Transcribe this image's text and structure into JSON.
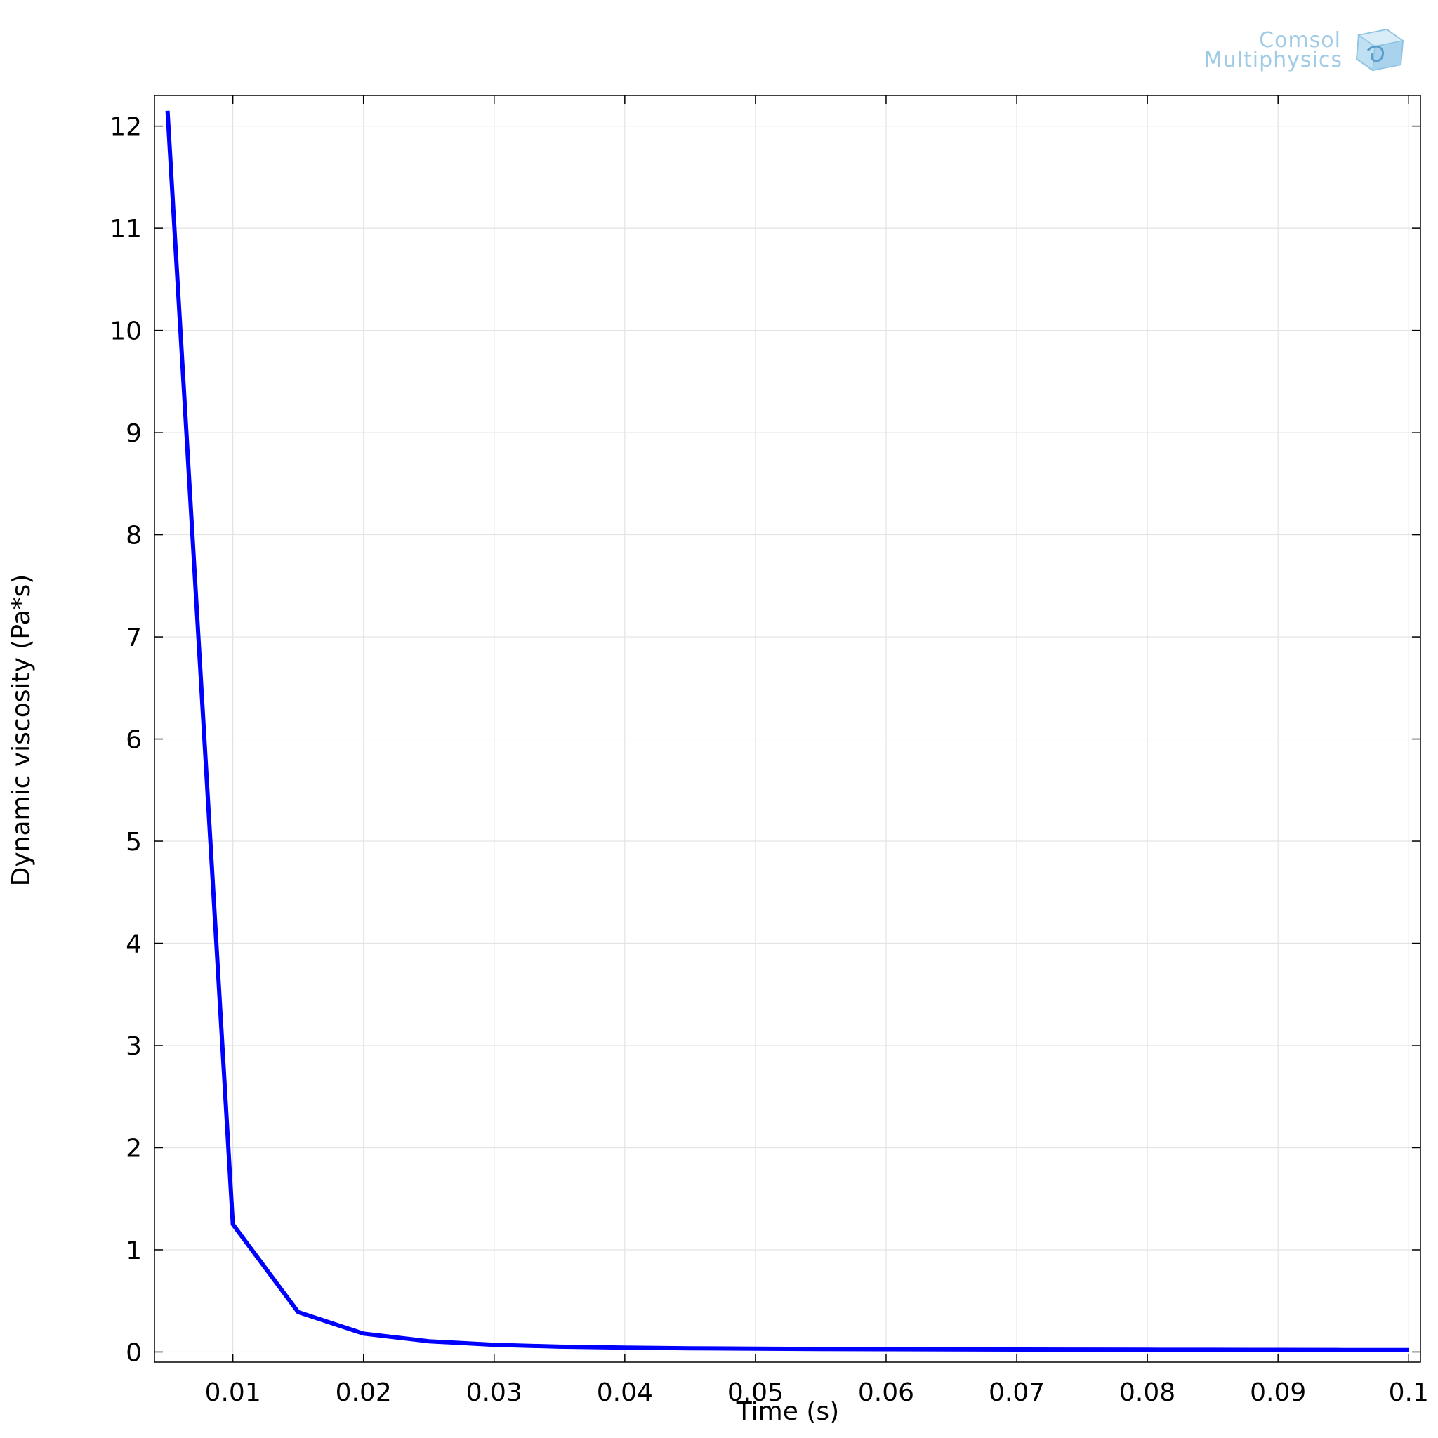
{
  "logo": {
    "line1": "Comsol",
    "line2": "Multiphysics",
    "color": "#9fcbe6"
  },
  "chart_data": {
    "type": "line",
    "title": "",
    "xlabel": "Time (s)",
    "ylabel": "Dynamic viscosity (Pa*s)",
    "xlim": [
      0.004,
      0.1009
    ],
    "ylim": [
      -0.1,
      12.3
    ],
    "xticks": [
      0.01,
      0.02,
      0.03,
      0.04,
      0.05,
      0.06,
      0.07,
      0.08,
      0.09,
      0.1
    ],
    "xtick_labels": [
      "0.01",
      "0.02",
      "0.03",
      "0.04",
      "0.05",
      "0.06",
      "0.07",
      "0.08",
      "0.09",
      "0.1"
    ],
    "yticks": [
      0,
      1,
      2,
      3,
      4,
      5,
      6,
      7,
      8,
      9,
      10,
      11,
      12
    ],
    "ytick_labels": [
      "0",
      "1",
      "2",
      "3",
      "4",
      "5",
      "6",
      "7",
      "8",
      "9",
      "10",
      "11",
      "12"
    ],
    "grid": true,
    "line_color": "#0000ff",
    "series": [
      {
        "x": [
          0.005,
          0.01,
          0.015,
          0.02,
          0.025,
          0.03,
          0.035,
          0.04,
          0.045,
          0.05,
          0.055,
          0.06,
          0.065,
          0.07,
          0.075,
          0.08,
          0.085,
          0.09,
          0.095,
          0.1
        ],
        "y": [
          12.15,
          1.25,
          0.39,
          0.18,
          0.105,
          0.07,
          0.052,
          0.042,
          0.036,
          0.032,
          0.029,
          0.027,
          0.025,
          0.024,
          0.023,
          0.022,
          0.021,
          0.02,
          0.019,
          0.018
        ]
      }
    ]
  }
}
